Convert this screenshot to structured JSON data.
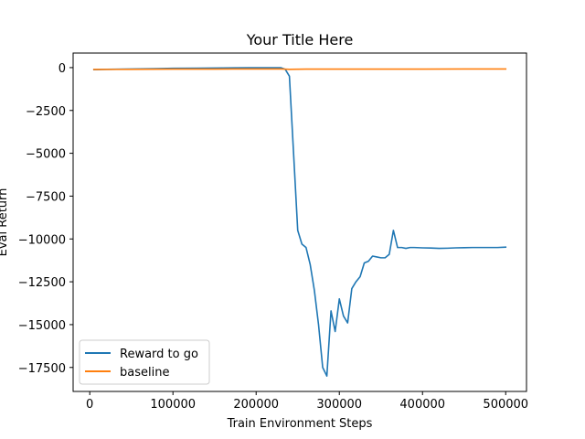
{
  "chart_data": {
    "type": "line",
    "title": "Your Title Here",
    "xlabel": "Train Environment Steps",
    "ylabel": "Eval Return",
    "xlim": [
      -20000,
      525000
    ],
    "ylim": [
      -18900,
      850
    ],
    "grid": false,
    "legend_position": "lower-left",
    "x_ticks": [
      0,
      100000,
      200000,
      300000,
      400000,
      500000
    ],
    "x_tick_labels": [
      "0",
      "100000",
      "200000",
      "300000",
      "400000",
      "500000"
    ],
    "y_ticks": [
      0,
      -2500,
      -5000,
      -7500,
      -10000,
      -12500,
      -15000,
      -17500
    ],
    "y_tick_labels": [
      "0",
      "−2500",
      "−5000",
      "−7500",
      "−10000",
      "−12500",
      "−15000",
      "−17500"
    ],
    "series": [
      {
        "name": "Reward to go",
        "color": "#1f77b4",
        "x": [
          5000,
          20000,
          50000,
          80000,
          100000,
          130000,
          160000,
          190000,
          210000,
          230000,
          235000,
          240000,
          245000,
          250000,
          255000,
          260000,
          265000,
          270000,
          275000,
          280000,
          285000,
          290000,
          295000,
          300000,
          305000,
          310000,
          315000,
          320000,
          325000,
          330000,
          335000,
          340000,
          345000,
          350000,
          355000,
          360000,
          365000,
          370000,
          375000,
          380000,
          385000,
          390000,
          400000,
          410000,
          420000,
          430000,
          440000,
          450000,
          460000,
          470000,
          480000,
          490000,
          500000
        ],
        "y": [
          -120,
          -100,
          -80,
          -60,
          -40,
          -30,
          -20,
          -10,
          -10,
          -10,
          -100,
          -500,
          -5000,
          -9500,
          -10300,
          -10500,
          -11500,
          -13000,
          -15000,
          -17500,
          -18000,
          -14200,
          -15400,
          -13500,
          -14500,
          -14900,
          -12900,
          -12500,
          -12200,
          -11400,
          -11300,
          -11000,
          -11050,
          -11100,
          -11100,
          -10900,
          -9500,
          -10500,
          -10500,
          -10550,
          -10500,
          -10500,
          -10520,
          -10530,
          -10550,
          -10540,
          -10520,
          -10510,
          -10500,
          -10500,
          -10500,
          -10500,
          -10480
        ]
      },
      {
        "name": "baseline",
        "color": "#ff7f0e",
        "x": [
          5000,
          50000,
          100000,
          150000,
          200000,
          230000,
          240000,
          260000,
          300000,
          350000,
          400000,
          450000,
          500000
        ],
        "y": [
          -110,
          -100,
          -90,
          -85,
          -80,
          -80,
          -100,
          -90,
          -90,
          -85,
          -85,
          -80,
          -80
        ]
      }
    ]
  }
}
